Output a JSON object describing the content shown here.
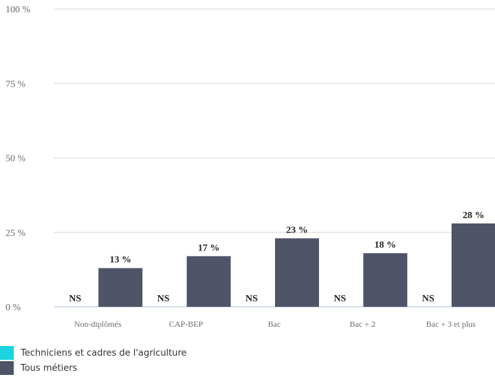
{
  "chart_data": {
    "type": "bar",
    "categories": [
      "Non-diplômés",
      "CAP-BEP",
      "Bac",
      "Bac + 2",
      "Bac + 3 et plus"
    ],
    "series": [
      {
        "name": "Techniciens et cadres de l'agriculture",
        "values": [
          null,
          null,
          null,
          null,
          null
        ],
        "labels": [
          "NS",
          "NS",
          "NS",
          "NS",
          "NS"
        ],
        "color": "#19d4e0"
      },
      {
        "name": "Tous métiers",
        "values": [
          13,
          17,
          23,
          18,
          28
        ],
        "labels": [
          "13 %",
          "17 %",
          "23 %",
          "18 %",
          "28 %"
        ],
        "color": "#4f5468"
      }
    ],
    "y_ticks": [
      "0 %",
      "25 %",
      "50 %",
      "75 %",
      "100 %"
    ],
    "ylim": [
      0,
      100
    ],
    "grid": true,
    "legend_position": "bottom-left"
  }
}
